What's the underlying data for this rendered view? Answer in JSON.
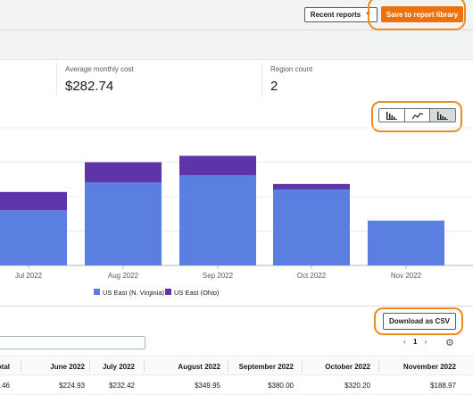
{
  "header": {
    "recent_reports_label": "Recent reports",
    "save_label": "Save to report library"
  },
  "metrics": [
    {
      "label": "Average monthly cost",
      "value": "$282.74"
    },
    {
      "label": "Region count",
      "value": "2"
    }
  ],
  "chart_controls": {
    "options": [
      "bar-chart-icon",
      "line-chart-icon",
      "stacked-bar-chart-icon"
    ],
    "active": "stacked-bar-chart-icon"
  },
  "chart_data": {
    "type": "bar",
    "stacked": true,
    "categories": [
      "Jul 2022",
      "Aug 2022",
      "Sep 2022",
      "Oct 2022",
      "Nov 2022"
    ],
    "series": [
      {
        "name": "US East (N. Virginia)",
        "color": "#5a7fe0",
        "values": [
          232.42,
          349.95,
          380.0,
          320.2,
          188.97
        ]
      },
      {
        "name": "US East (Ohio)",
        "color": "#5e35a8",
        "values": [
          77,
          85,
          82,
          23,
          0
        ]
      }
    ],
    "ylim": [
      0,
      580
    ],
    "grid": true,
    "legend": "bottom"
  },
  "table": {
    "download_label": "Download as CSV",
    "page": "1",
    "columns": [
      "otal",
      "June 2022",
      "July 2022",
      "August 2022",
      "September 2022",
      "October 2022",
      "November 2022"
    ],
    "row": [
      ".46",
      "$224.93",
      "$232.42",
      "$349.95",
      "$380.00",
      "$320.20",
      "$188.97"
    ]
  }
}
